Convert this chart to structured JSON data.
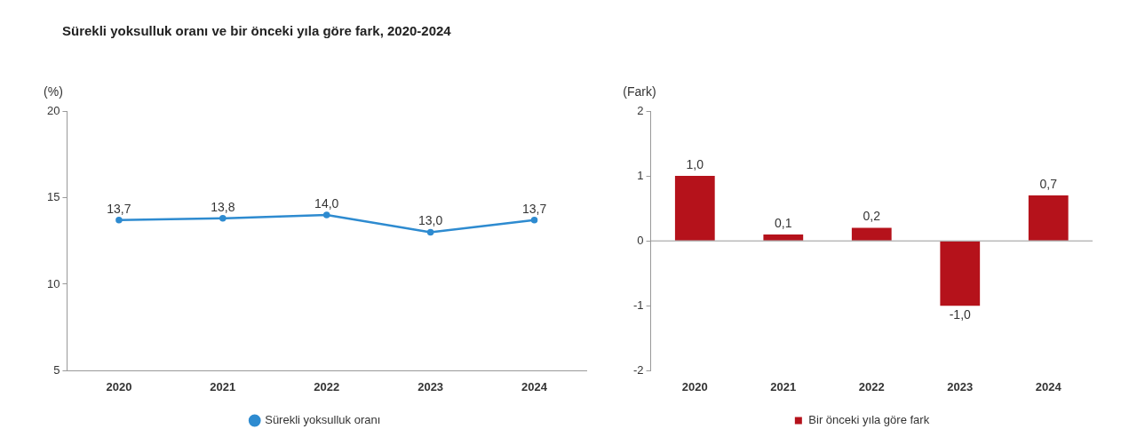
{
  "chart_data": [
    {
      "type": "line",
      "title": "Sürekli yoksulluk oranı ve bir önceki yıla göre fark, 2020-2024",
      "ylabel": "(%)",
      "categories": [
        "2020",
        "2021",
        "2022",
        "2023",
        "2024"
      ],
      "series": [
        {
          "name": "Sürekli yoksulluk oranı",
          "color": "#2e8bd0",
          "values": [
            13.7,
            13.8,
            14.0,
            13.0,
            13.7
          ],
          "value_labels": [
            "13,7",
            "13,8",
            "14,0",
            "13,0",
            "13,7"
          ]
        }
      ],
      "ylim": [
        5,
        20
      ],
      "yticks": [
        5,
        10,
        15,
        20
      ],
      "grid": false,
      "legend": "bottom",
      "marker": "circle",
      "line_style": "solid"
    },
    {
      "type": "bar",
      "ylabel": "(Fark)",
      "categories": [
        "2020",
        "2021",
        "2022",
        "2023",
        "2024"
      ],
      "series": [
        {
          "name": "Bir önceki yıla göre fark",
          "color": "#b5121b",
          "values": [
            1.0,
            0.1,
            0.2,
            -1.0,
            0.7
          ],
          "value_labels": [
            "1,0",
            "0,1",
            "0,2",
            "-1,0",
            "0,7"
          ]
        }
      ],
      "ylim": [
        -2,
        2
      ],
      "yticks": [
        -2,
        -1,
        0,
        1,
        2
      ],
      "ref_lines": [
        {
          "axis": "y",
          "value": 0,
          "color": "#999999"
        }
      ],
      "grid": false,
      "legend": "bottom"
    }
  ]
}
